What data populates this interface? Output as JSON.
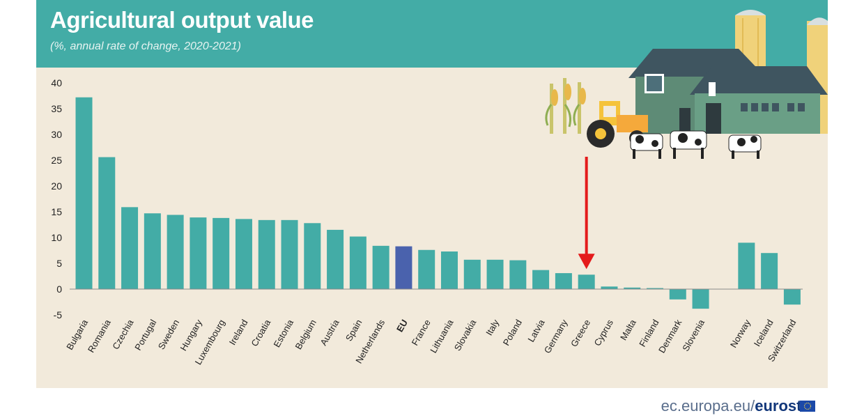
{
  "header": {
    "title": "Agricultural output value",
    "subtitle": "(%, annual rate of change, 2020-2021)"
  },
  "footer": {
    "domain": "ec.europa.eu/",
    "brand": "eurostat"
  },
  "colors": {
    "bar": "#43aca6",
    "highlight": "#4a62ad",
    "header": "#43aca6",
    "plot_bg": "#f2eadb",
    "arrow": "#e41b1b"
  },
  "chart_data": {
    "type": "bar",
    "title": "Agricultural output value",
    "subtitle": "(%, annual rate of change, 2020-2021)",
    "xlabel": "",
    "ylabel": "",
    "ylim": [
      -5,
      40
    ],
    "yticks": [
      40,
      35,
      30,
      25,
      20,
      15,
      10,
      5,
      0,
      -5
    ],
    "grid": false,
    "categories": [
      "Bulgaria",
      "Romania",
      "Czechia",
      "Portugal",
      "Sweden",
      "Hungary",
      "Luxembourg",
      "Ireland",
      "Croatia",
      "Estonia",
      "Belgium",
      "Austria",
      "Spain",
      "Netherlands",
      "EU",
      "France",
      "Lithuania",
      "Slovakia",
      "Italy",
      "Poland",
      "Latvia",
      "Germany",
      "Greece",
      "Cyprus",
      "Malta",
      "Finland",
      "Denmark",
      "Slovenia",
      "Norway",
      "Iceland",
      "Switzerland"
    ],
    "values": [
      37.2,
      25.6,
      15.9,
      14.7,
      14.4,
      13.9,
      13.8,
      13.6,
      13.4,
      13.4,
      12.8,
      11.5,
      10.2,
      8.4,
      8.3,
      7.6,
      7.3,
      5.7,
      5.7,
      5.6,
      3.7,
      3.1,
      2.8,
      0.5,
      0.3,
      0.2,
      -2.0,
      -3.8,
      9.0,
      7.0,
      -3.0
    ],
    "highlight": [
      "EU"
    ],
    "annotation": {
      "type": "arrow",
      "target": "Greece"
    }
  }
}
